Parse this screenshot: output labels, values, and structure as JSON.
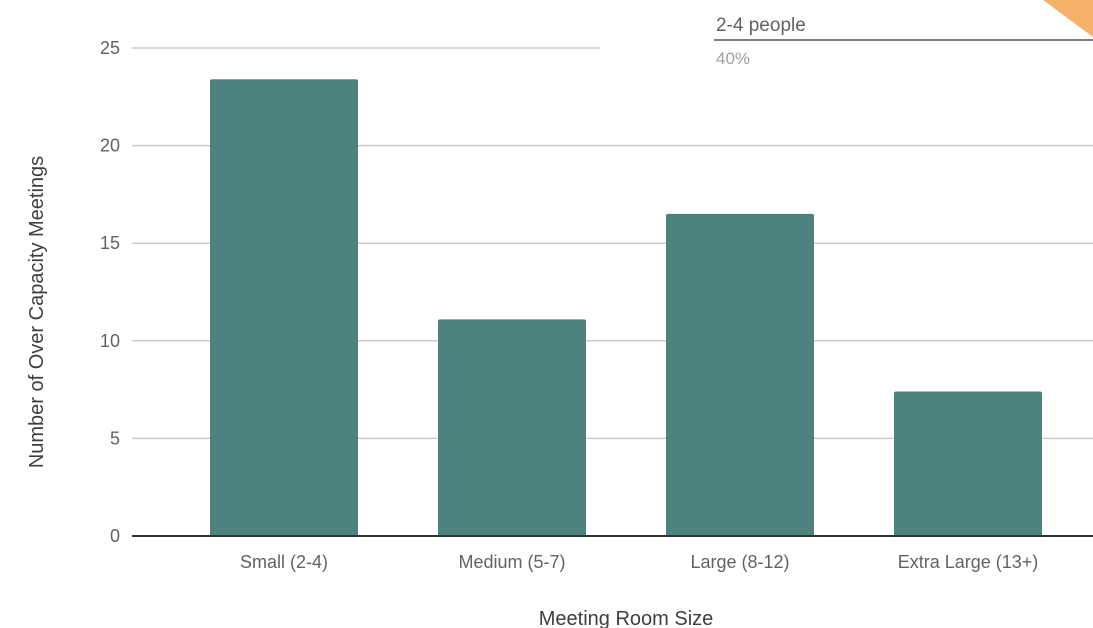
{
  "chart_data": {
    "type": "bar",
    "categories": [
      "Small (2-4)",
      "Medium (5-7)",
      "Large (8-12)",
      "Extra Large (13+)"
    ],
    "values": [
      23.4,
      11.1,
      16.5,
      7.4
    ],
    "title": "",
    "xlabel": "Meeting Room Size",
    "ylabel": "Number of Over Capacity Meetings",
    "ylim": [
      0,
      25
    ],
    "yticks": [
      0,
      5,
      10,
      15,
      20,
      25
    ],
    "grid": true,
    "legend": "none",
    "bar_color": "#4d827f"
  },
  "overlay_callout": {
    "label": "2-4 people",
    "value": "40%",
    "accent_color": "#f6b26b"
  }
}
